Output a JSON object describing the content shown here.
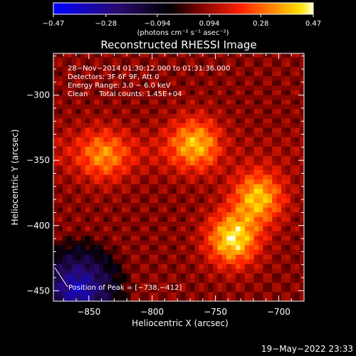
{
  "chart_data": {
    "type": "heatmap",
    "title": "Reconstructed RHESSI Image",
    "xlabel": "Heliocentric X (arcsec)",
    "ylabel": "Heliocentric Y (arcsec)",
    "xlim": [
      -878,
      -680
    ],
    "ylim": [
      -458,
      -268
    ],
    "x_ticks": [
      -850,
      -800,
      -750,
      -700
    ],
    "x_tick_labels": [
      "−850",
      "−800",
      "−750",
      "−700"
    ],
    "y_ticks": [
      -300,
      -350,
      -400,
      -450
    ],
    "y_tick_labels": [
      "−300",
      "−350",
      "−400",
      "−450"
    ],
    "colorbar": {
      "min": -0.47,
      "max": 0.47,
      "ticks": [
        -0.47,
        -0.28,
        -0.094,
        0.094,
        0.28,
        0.47
      ],
      "tick_labels": [
        "−0.47",
        "−0.28",
        "−0.094",
        "0.094",
        "0.28",
        "0.47"
      ],
      "units_label": "(photons cm⁻² s⁻¹ asec⁻²)",
      "colors": [
        "#0000ff",
        "#2a0a6e",
        "#000000",
        "#800000",
        "#ff2000",
        "#ff8000",
        "#ffd000",
        "#ffffc8"
      ]
    },
    "annotations": {
      "line1": "28−Nov−2014 01:30:12.000 to 01:31:36.000",
      "line2": "Detectors: 3F 6F 9F, Att 0",
      "line3": "Energy Range: 3.0 − 6.0 keV",
      "line4": "Clean     Total counts: 1.45E+04",
      "peak": "Position of Peak = [−738,−412]"
    },
    "peak": {
      "x": -738,
      "y": -412
    },
    "sources": [
      {
        "x": -738,
        "y": -412,
        "value": 0.47
      },
      {
        "x": -718,
        "y": -380,
        "value": 0.42
      },
      {
        "x": -768,
        "y": -338,
        "value": 0.36
      },
      {
        "x": -840,
        "y": -348,
        "value": 0.3
      }
    ]
  },
  "timestamp": "19−May−2022 23:33"
}
